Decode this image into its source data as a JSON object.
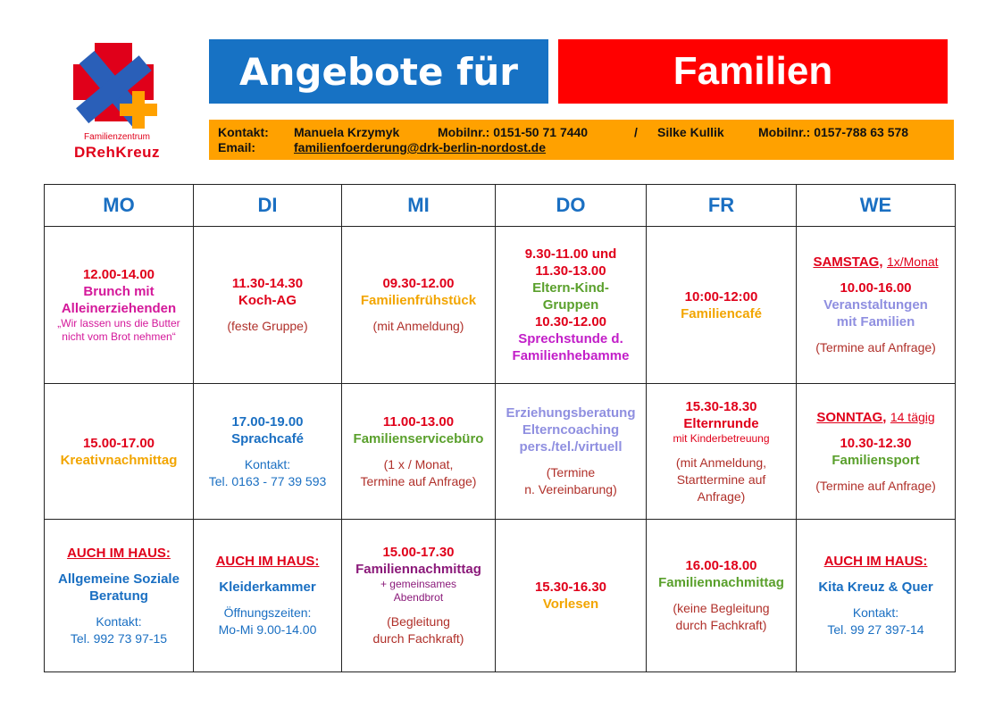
{
  "header": {
    "title_left": "Angebote für",
    "title_right": "Familien",
    "logo_line1": "Familienzentrum",
    "logo_line2": "DRehKreuz"
  },
  "contact": {
    "label_contact": "Kontakt:",
    "person1": "Manuela Krzymyk",
    "mobil1": "Mobilnr.: 0151-50 71 7440",
    "sep": "/",
    "person2": "Silke Kullik",
    "mobil2": "Mobilnr.: 0157-788 63 578",
    "label_email": "Email:",
    "email": "familienfoerderung@drk-berlin-nordost.de"
  },
  "days": [
    "MO",
    "DI",
    "MI",
    "DO",
    "FR",
    "WE"
  ],
  "schedule": {
    "mo1": {
      "time": "12.00-14.00",
      "title1": "Brunch mit",
      "title2": "Alleinerziehenden",
      "note1": "„Wir lassen uns die Butter",
      "note2": "nicht vom Brot nehmen“"
    },
    "di1": {
      "time": "11.30-14.30",
      "title": "Koch-AG",
      "note": "(feste Gruppe)"
    },
    "mi1": {
      "time": "09.30-12.00",
      "title": "Familienfrühstück",
      "note": "(mit Anmeldung)"
    },
    "do1": {
      "time1": "9.30-11.00 und",
      "time2": "11.30-13.00",
      "title1": "Eltern-Kind-",
      "title2": "Gruppen",
      "time3": "10.30-12.00",
      "title3": "Sprechstunde d.",
      "title4": "Familienhebamme"
    },
    "fr1": {
      "time": "10:00-12:00",
      "title": "Familiencafé"
    },
    "we1": {
      "day": "SAMSTAG,",
      "freq": "1x/Monat",
      "time": "10.00-16.00",
      "title1": "Veranstaltungen",
      "title2": "mit Familien",
      "note": "(Termine auf Anfrage)"
    },
    "mo2": {
      "time": "15.00-17.00",
      "title": "Kreativnachmittag"
    },
    "di2": {
      "time": "17.00-19.00",
      "title": "Sprachcafé",
      "note1": "Kontakt:",
      "note2": "Tel. 0163 - 77 39 593"
    },
    "mi2": {
      "time": "11.00-13.00",
      "title": "Familienservicebüro",
      "note1": "(1 x / Monat,",
      "note2": "Termine auf Anfrage)"
    },
    "do2": {
      "title1": "Erziehungsberatung",
      "title2": "Elterncoaching",
      "title3": "pers./tel./virtuell",
      "note1": "(Termine",
      "note2": "n. Vereinbarung)"
    },
    "fr2": {
      "time": "15.30-18.30",
      "title": "Elternrunde",
      "sub": "mit Kinderbetreuung",
      "note1": "(mit Anmeldung,",
      "note2": "Starttermine auf",
      "note3": "Anfrage)"
    },
    "we2": {
      "day": "SONNTAG,",
      "freq": "14 tägig",
      "time": "10.30-12.30",
      "title": "Familiensport",
      "note": "(Termine auf Anfrage)"
    },
    "mo3": {
      "head": "AUCH IM HAUS:",
      "title1": "Allgemeine Soziale",
      "title2": "Beratung",
      "note1": "Kontakt:",
      "note2": "Tel. 992 73 97-15"
    },
    "di3": {
      "head": "AUCH IM HAUS:",
      "title": "Kleiderkammer",
      "note1": "Öffnungszeiten:",
      "note2": "Mo-Mi 9.00-14.00"
    },
    "mi3": {
      "time": "15.00-17.30",
      "title": "Familiennachmittag",
      "sub1": "+ gemeinsames",
      "sub2": "Abendbrot",
      "note1": "(Begleitung",
      "note2": "durch Fachkraft)"
    },
    "do3": {
      "time": "15.30-16.30",
      "title": "Vorlesen"
    },
    "fr3": {
      "time": "16.00-18.00",
      "title": "Familiennachmittag",
      "note1": "(keine Begleitung",
      "note2": "durch Fachkraft)"
    },
    "we3": {
      "head": "AUCH IM HAUS:",
      "title": "Kita Kreuz & Quer",
      "note1": "Kontakt:",
      "note2": "Tel. 99 27 397-14"
    }
  }
}
